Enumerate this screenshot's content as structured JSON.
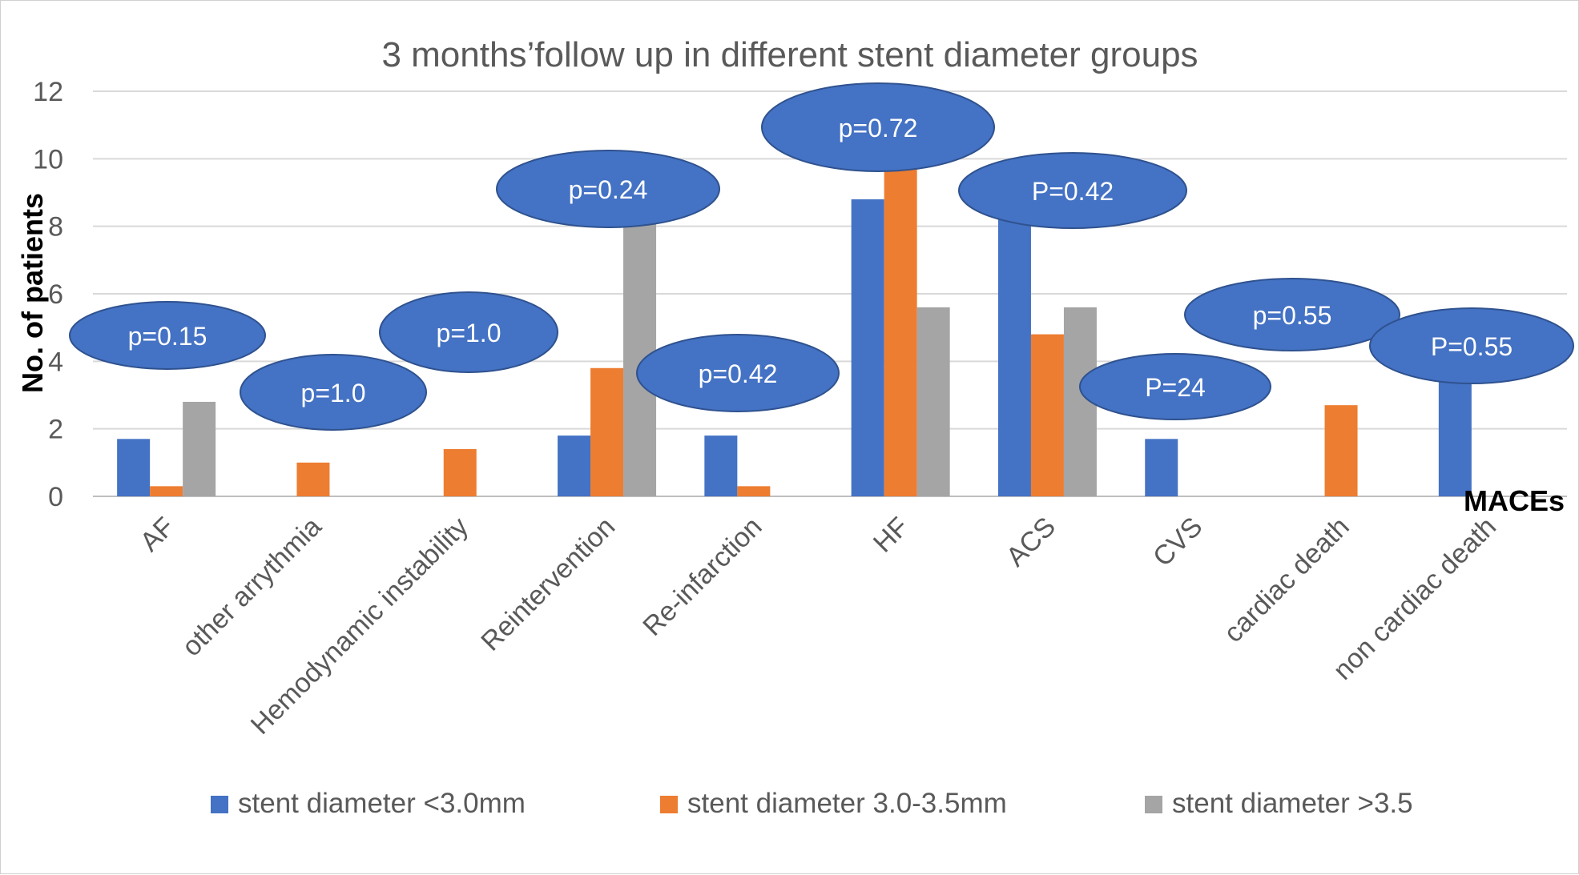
{
  "chart_data": {
    "type": "bar",
    "title": "3 months’follow up in different stent diameter groups",
    "ylabel": "No. of patients",
    "xlabel": "MACEs",
    "ylim": [
      0,
      12
    ],
    "yticks": [
      0,
      2,
      4,
      6,
      8,
      10,
      12
    ],
    "grid": true,
    "legend_position": "bottom",
    "categories": [
      "AF",
      "other arrythmia",
      "Hemodynamic instability",
      "Reintervention",
      "Re-infarction",
      "HF",
      "ACS",
      "CVS",
      "cardiac death",
      "non cardiac death"
    ],
    "series": [
      {
        "name": "stent diameter <3.0mm",
        "color": "#4472c4",
        "values": [
          1.7,
          0,
          0,
          1.8,
          1.8,
          8.8,
          8.7,
          1.7,
          0,
          3.4
        ]
      },
      {
        "name": "stent diameter 3.0-3.5mm",
        "color": "#ed7d31",
        "values": [
          0.3,
          1.0,
          1.4,
          3.8,
          0.3,
          9.7,
          4.8,
          0,
          2.7,
          0
        ]
      },
      {
        "name": "stent diameter >3.5",
        "color": "#a5a5a5",
        "values": [
          2.8,
          0,
          0,
          8.2,
          0,
          5.6,
          5.6,
          0,
          0,
          0
        ]
      }
    ],
    "annotations": [
      {
        "text": "p=0.15",
        "category": "AF"
      },
      {
        "text": "p=1.0",
        "category": "other arrythmia"
      },
      {
        "text": "p=1.0",
        "category": "Hemodynamic instability"
      },
      {
        "text": "p=0.24",
        "category": "Reintervention"
      },
      {
        "text": "p=0.42",
        "category": "Re-infarction"
      },
      {
        "text": "p=0.72",
        "category": "HF"
      },
      {
        "text": "P=0.42",
        "category": "ACS"
      },
      {
        "text": "P=24",
        "category": "CVS"
      },
      {
        "text": "p=0.55",
        "category": "cardiac death"
      },
      {
        "text": "P=0.55",
        "category": "non cardiac death"
      }
    ],
    "annotation_color": "#4472c4"
  }
}
